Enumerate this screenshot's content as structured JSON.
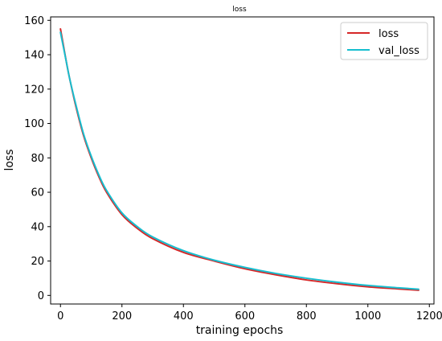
{
  "chart_data": {
    "type": "line",
    "title": "loss",
    "xlabel": "training epochs",
    "ylabel": "loss",
    "xlim": [
      -32,
      1215
    ],
    "ylim": [
      -5,
      162
    ],
    "xticks": [
      0,
      200,
      400,
      600,
      800,
      1000,
      1200
    ],
    "yticks": [
      0,
      20,
      40,
      60,
      80,
      100,
      120,
      140,
      160
    ],
    "grid": false,
    "legend_position": "top-right",
    "series": [
      {
        "name": "loss",
        "color": "#d62728",
        "x": [
          0,
          10,
          20,
          30,
          50,
          75,
          100,
          125,
          150,
          200,
          250,
          300,
          400,
          500,
          600,
          700,
          800,
          900,
          1000,
          1100,
          1165
        ],
        "y": [
          155,
          145,
          135,
          126,
          110,
          93,
          80,
          69,
          60,
          47,
          39,
          33,
          25,
          20,
          15.5,
          12,
          9,
          6.8,
          5,
          3.8,
          3
        ]
      },
      {
        "name": "val_loss",
        "color": "#17becf",
        "x": [
          0,
          10,
          20,
          30,
          50,
          75,
          100,
          125,
          150,
          200,
          250,
          300,
          400,
          500,
          600,
          700,
          800,
          900,
          1000,
          1100,
          1165
        ],
        "y": [
          153,
          144,
          135,
          126,
          111,
          94,
          81,
          70,
          61,
          48,
          40,
          34,
          26,
          20.5,
          16.3,
          12.8,
          10,
          7.7,
          5.8,
          4.4,
          3.6
        ]
      }
    ]
  }
}
